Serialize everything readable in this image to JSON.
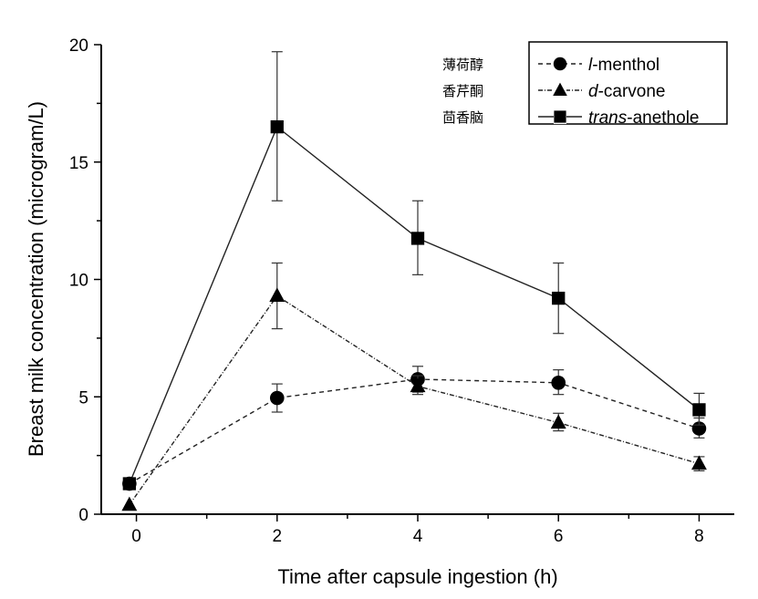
{
  "chart_data": {
    "type": "line",
    "title": "",
    "xlabel": "Time after capsule ingestion (h)",
    "ylabel": "Breast milk concentration (microgram/L)",
    "xlim": [
      -0.5,
      8.5
    ],
    "ylim": [
      0,
      20
    ],
    "xticks": [
      0,
      2,
      4,
      6,
      8
    ],
    "yticks": [
      0,
      5,
      10,
      15,
      20
    ],
    "grid": false,
    "legend_placement": "top-right",
    "legend_annotations": [
      "薄荷醇",
      "香芹酮",
      "茴香脑"
    ],
    "series": [
      {
        "name_italic": "l",
        "name_rest": "-menthol",
        "marker": "circle",
        "dash": "5,4",
        "x": [
          -0.1,
          2,
          4,
          6,
          8
        ],
        "y": [
          1.3,
          4.95,
          5.75,
          5.6,
          3.65
        ],
        "err_low": [
          1.3,
          4.35,
          5.2,
          5.1,
          3.25
        ],
        "err_high": [
          1.3,
          5.55,
          6.3,
          6.15,
          4.1
        ]
      },
      {
        "name_italic": "d",
        "name_rest": "-carvone",
        "marker": "triangle",
        "dash": "5,2,1,2",
        "x": [
          -0.1,
          2,
          4,
          6,
          8
        ],
        "y": [
          0.4,
          9.3,
          5.45,
          3.9,
          2.15
        ],
        "err_low": [
          0.4,
          7.9,
          5.1,
          3.55,
          1.85
        ],
        "err_high": [
          0.4,
          10.7,
          5.9,
          4.3,
          2.45
        ]
      },
      {
        "name_italic": "trans",
        "name_rest": "-anethole",
        "marker": "square",
        "dash": "",
        "x": [
          -0.1,
          2,
          4,
          6,
          8
        ],
        "y": [
          1.3,
          16.5,
          11.75,
          9.2,
          4.45
        ],
        "err_low": [
          1.3,
          13.35,
          10.2,
          7.7,
          3.8
        ],
        "err_high": [
          1.3,
          19.7,
          13.35,
          10.7,
          5.15
        ]
      }
    ]
  }
}
